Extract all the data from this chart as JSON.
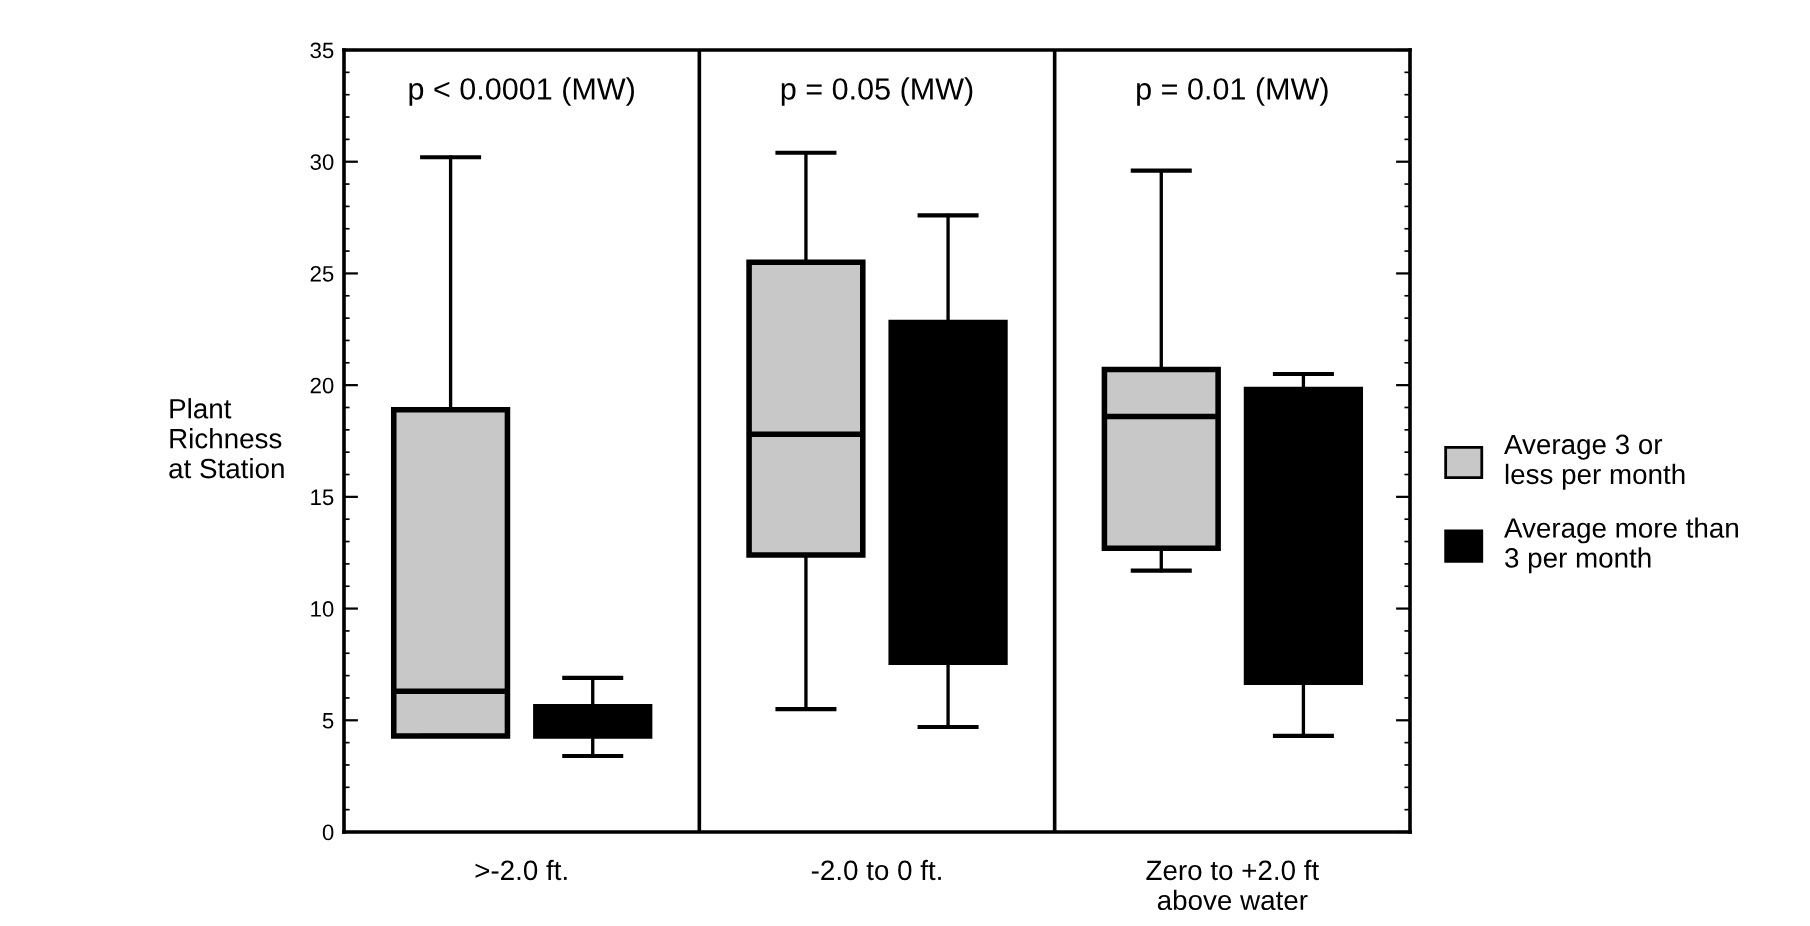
{
  "chart_data": {
    "type": "box",
    "ylabel": "Plant\nRichness\nat Station",
    "annotations": [
      "p < 0.0001 (MW)",
      "p = 0.05 (MW)",
      "p = 0.01 (MW)"
    ],
    "categories": [
      ">-2.0 ft.",
      "-2.0 to 0 ft.",
      "Zero to +2.0 ft\nabove water"
    ],
    "ylim": [
      0,
      35
    ],
    "yticks": [
      0,
      5,
      10,
      15,
      20,
      25,
      30,
      35
    ],
    "legend": "right",
    "series": [
      {
        "name": "Average 3 or\nless per month",
        "color": "#c8c8c8",
        "boxes": [
          {
            "low": 4.3,
            "q1": 4.3,
            "median": 6.3,
            "q3": 18.9,
            "high": 30.2
          },
          {
            "low": 5.5,
            "q1": 12.4,
            "median": 17.8,
            "q3": 25.5,
            "high": 30.4
          },
          {
            "low": 11.7,
            "q1": 12.7,
            "median": 18.6,
            "q3": 20.7,
            "high": 29.6
          }
        ]
      },
      {
        "name": "Average more than\n3 per month",
        "color": "#000000",
        "boxes": [
          {
            "low": 3.4,
            "q1": 4.3,
            "median": 5.0,
            "q3": 5.6,
            "high": 6.9
          },
          {
            "low": 4.7,
            "q1": 7.6,
            "median": 15.0,
            "q3": 22.8,
            "high": 27.6
          },
          {
            "low": 4.3,
            "q1": 6.7,
            "median": 13.0,
            "q3": 19.8,
            "high": 20.5
          }
        ]
      }
    ]
  }
}
